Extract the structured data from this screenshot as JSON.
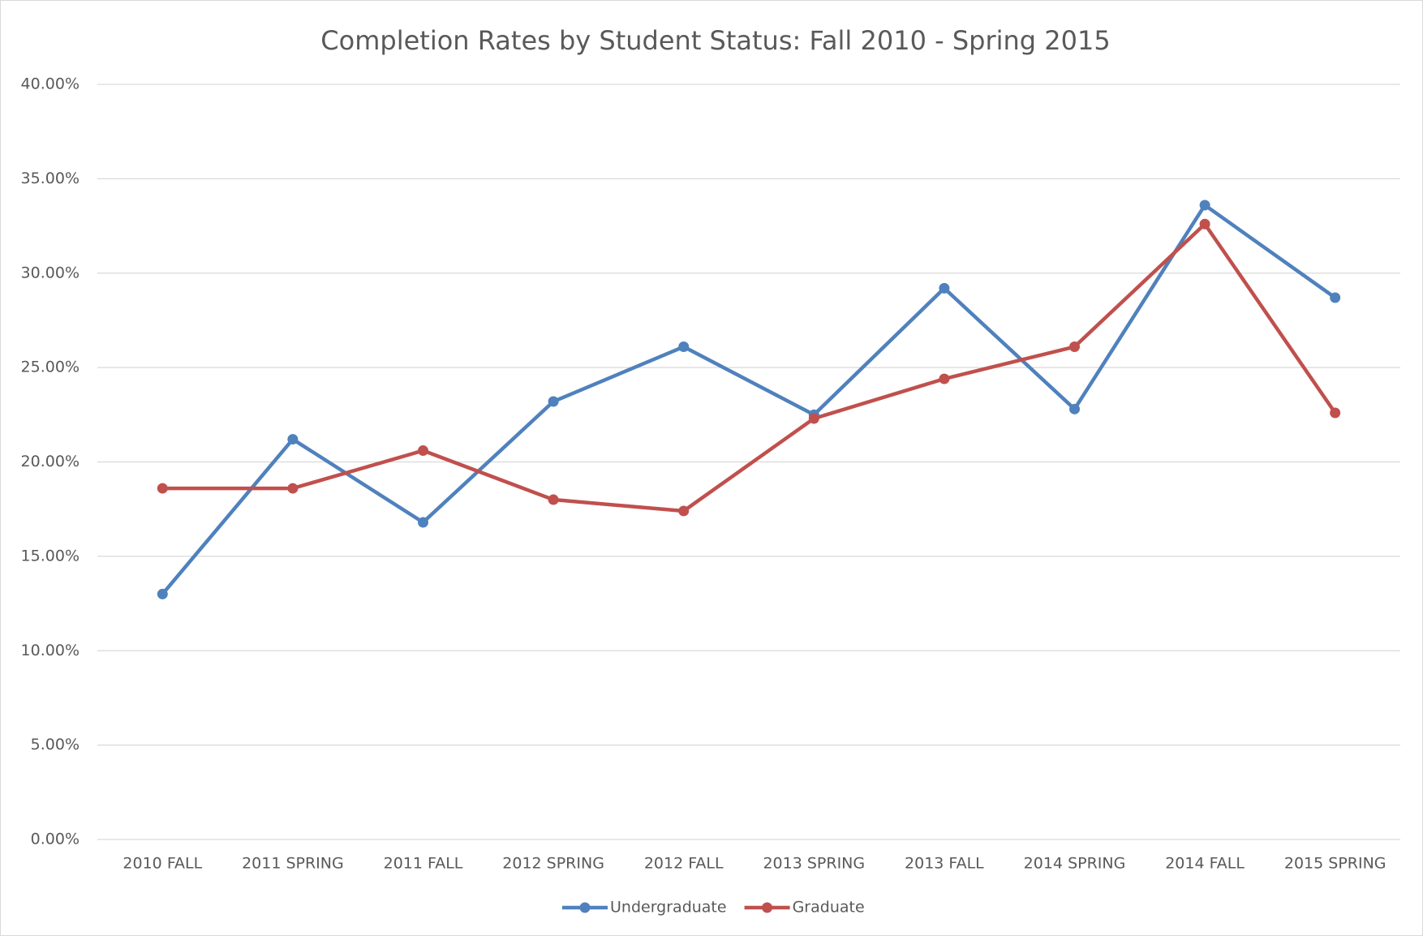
{
  "chart_data": {
    "type": "line",
    "title": "Completion Rates by Student Status: Fall 2010 - Spring 2015",
    "categories": [
      "2010 FALL",
      "2011 SPRING",
      "2011 FALL",
      "2012 SPRING",
      "2012 FALL",
      "2013 SPRING",
      "2013 FALL",
      "2014 SPRING",
      "2014 FALL",
      "2015 SPRING"
    ],
    "series": [
      {
        "name": "Undergraduate",
        "color": "#4f81bd",
        "values": [
          13.0,
          21.2,
          16.8,
          23.2,
          26.1,
          22.5,
          29.2,
          22.8,
          33.6,
          28.7
        ]
      },
      {
        "name": "Graduate",
        "color": "#c0504d",
        "values": [
          18.6,
          18.6,
          20.6,
          18.0,
          17.4,
          22.3,
          24.4,
          26.1,
          32.6,
          22.6
        ]
      }
    ],
    "ylim": [
      0,
      40
    ],
    "yticks": [
      {
        "value": 0,
        "label": "0.00%"
      },
      {
        "value": 5,
        "label": "5.00%"
      },
      {
        "value": 10,
        "label": "10.00%"
      },
      {
        "value": 15,
        "label": "15.00%"
      },
      {
        "value": 20,
        "label": "20.00%"
      },
      {
        "value": 25,
        "label": "25.00%"
      },
      {
        "value": 30,
        "label": "30.00%"
      },
      {
        "value": 35,
        "label": "35.00%"
      },
      {
        "value": 40,
        "label": "40.00%"
      }
    ],
    "grid": true,
    "legend": "bottom"
  }
}
